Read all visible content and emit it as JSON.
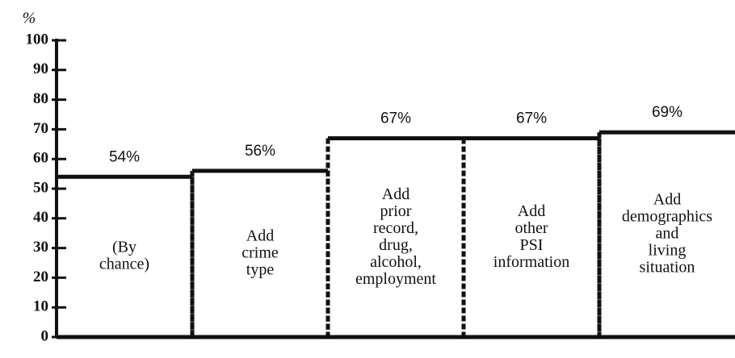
{
  "chart_data": {
    "type": "bar",
    "y_label": "%",
    "categories": [
      [
        "(By",
        "chance)"
      ],
      [
        "Add",
        "crime",
        "type"
      ],
      [
        "Add",
        "prior",
        "record,",
        "drug,",
        "alcohol,",
        "employment"
      ],
      [
        "Add",
        "other",
        "PSI",
        "information"
      ],
      [
        "Add",
        "demographics",
        "and",
        "living",
        "situation"
      ]
    ],
    "values": [
      54,
      56,
      67,
      67,
      69
    ],
    "value_labels": [
      "54%",
      "56%",
      "67%",
      "67%",
      "69%"
    ],
    "color": "#111111",
    "ylim": [
      0,
      100
    ],
    "yticks": [
      0,
      10,
      20,
      30,
      40,
      50,
      60,
      70,
      80,
      90,
      100
    ]
  }
}
